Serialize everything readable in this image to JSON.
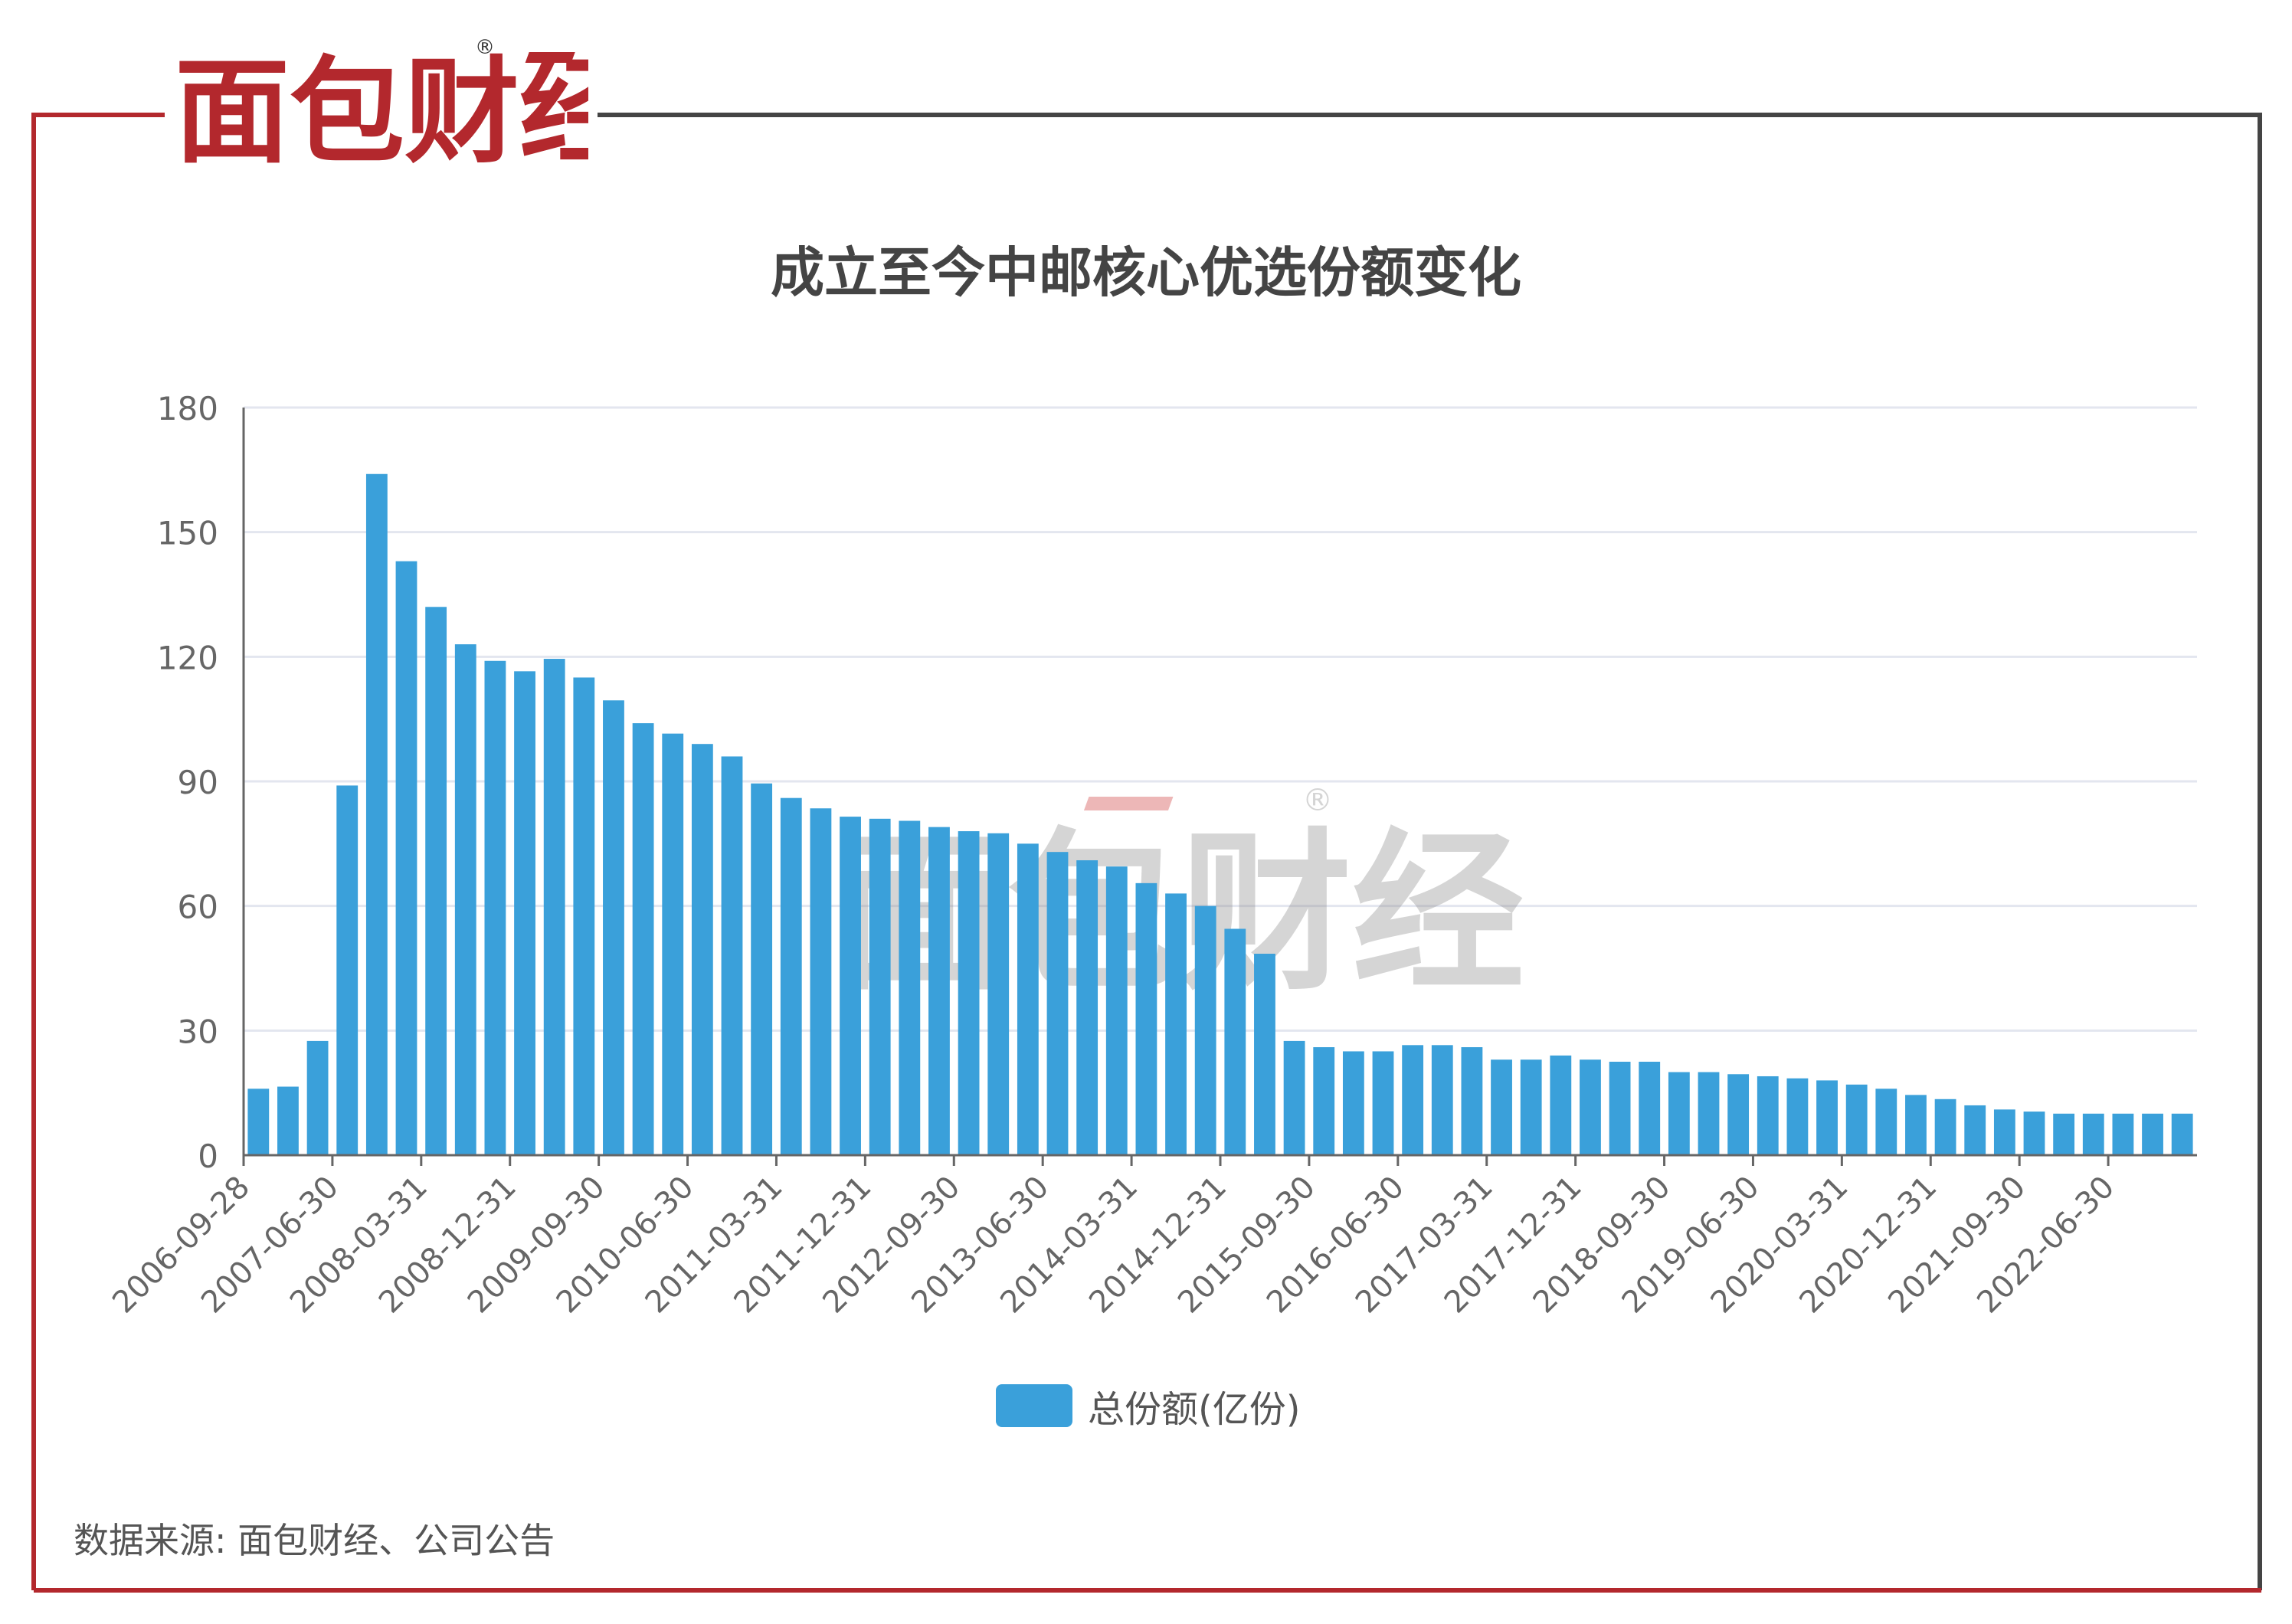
{
  "brand": {
    "logo_text": "面包财经",
    "registered_mark": "®",
    "colors": {
      "red": "#b3282d",
      "dark": "#333333",
      "frame_red": "#b3282d",
      "frame_dark": "#444444"
    }
  },
  "chart_data": {
    "type": "bar",
    "title": "成立至今中邮核心优选份额变化",
    "xlabel": "",
    "ylabel": "",
    "ylim": [
      0,
      180
    ],
    "yticks": [
      0,
      30,
      60,
      90,
      120,
      150,
      180
    ],
    "grid": true,
    "legend_position": "bottom",
    "bar_color": "#3aa0da",
    "x_tick_labels": [
      "2006-09-28",
      "2007-06-30",
      "2008-03-31",
      "2008-12-31",
      "2009-09-30",
      "2010-06-30",
      "2011-03-31",
      "2011-12-31",
      "2012-09-30",
      "2013-06-30",
      "2014-03-31",
      "2014-12-31",
      "2015-09-30",
      "2016-06-30",
      "2017-03-31",
      "2017-12-31",
      "2018-09-30",
      "2019-06-30",
      "2020-03-31",
      "2020-12-31",
      "2021-09-30",
      "2022-06-30"
    ],
    "categories": [
      "2006-09-28",
      "2006-12-31",
      "2007-03-31",
      "2007-06-30",
      "2007-09-30",
      "2007-12-31",
      "2008-03-31",
      "2008-06-30",
      "2008-09-30",
      "2008-12-31",
      "2009-03-31",
      "2009-06-30",
      "2009-09-30",
      "2009-12-31",
      "2010-03-31",
      "2010-06-30",
      "2010-09-30",
      "2010-12-31",
      "2011-03-31",
      "2011-06-30",
      "2011-09-30",
      "2011-12-31",
      "2012-03-31",
      "2012-06-30",
      "2012-09-30",
      "2012-12-31",
      "2013-03-31",
      "2013-06-30",
      "2013-09-30",
      "2013-12-31",
      "2014-03-31",
      "2014-06-30",
      "2014-09-30",
      "2014-12-31",
      "2015-03-31",
      "2015-06-30",
      "2015-09-30",
      "2015-12-31",
      "2016-03-31",
      "2016-06-30",
      "2016-09-30",
      "2016-12-31",
      "2017-03-31",
      "2017-06-30",
      "2017-09-30",
      "2017-12-31",
      "2018-03-31",
      "2018-06-30",
      "2018-09-30",
      "2018-12-31",
      "2019-03-31",
      "2019-06-30",
      "2019-09-30",
      "2019-12-31",
      "2020-03-31",
      "2020-06-30",
      "2020-09-30",
      "2020-12-31",
      "2021-03-31",
      "2021-06-30",
      "2021-09-30",
      "2021-12-31",
      "2022-03-31",
      "2022-06-30",
      "2022-09-30",
      "2022-12-31"
    ],
    "series": [
      {
        "name": "总份额(亿份)",
        "values": [
          16,
          16.5,
          27.5,
          89,
          164,
          143,
          132,
          123,
          119,
          116.5,
          119.5,
          115,
          109.5,
          104,
          101.5,
          99,
          96,
          89.5,
          86,
          83.5,
          81.5,
          81,
          80.5,
          79,
          78,
          77.5,
          75,
          73,
          71,
          69.5,
          65.5,
          63,
          60,
          54.5,
          48.5,
          27.5,
          26,
          25,
          25,
          26.5,
          26.5,
          26,
          23,
          23,
          24,
          23,
          22.5,
          22.5,
          20,
          20,
          19.5,
          19,
          18.5,
          18,
          17,
          16,
          14.5,
          13.5,
          12,
          11,
          10.5,
          10,
          10,
          10,
          10,
          10
        ]
      }
    ]
  },
  "source": "数据来源: 面包财经、公司公告"
}
